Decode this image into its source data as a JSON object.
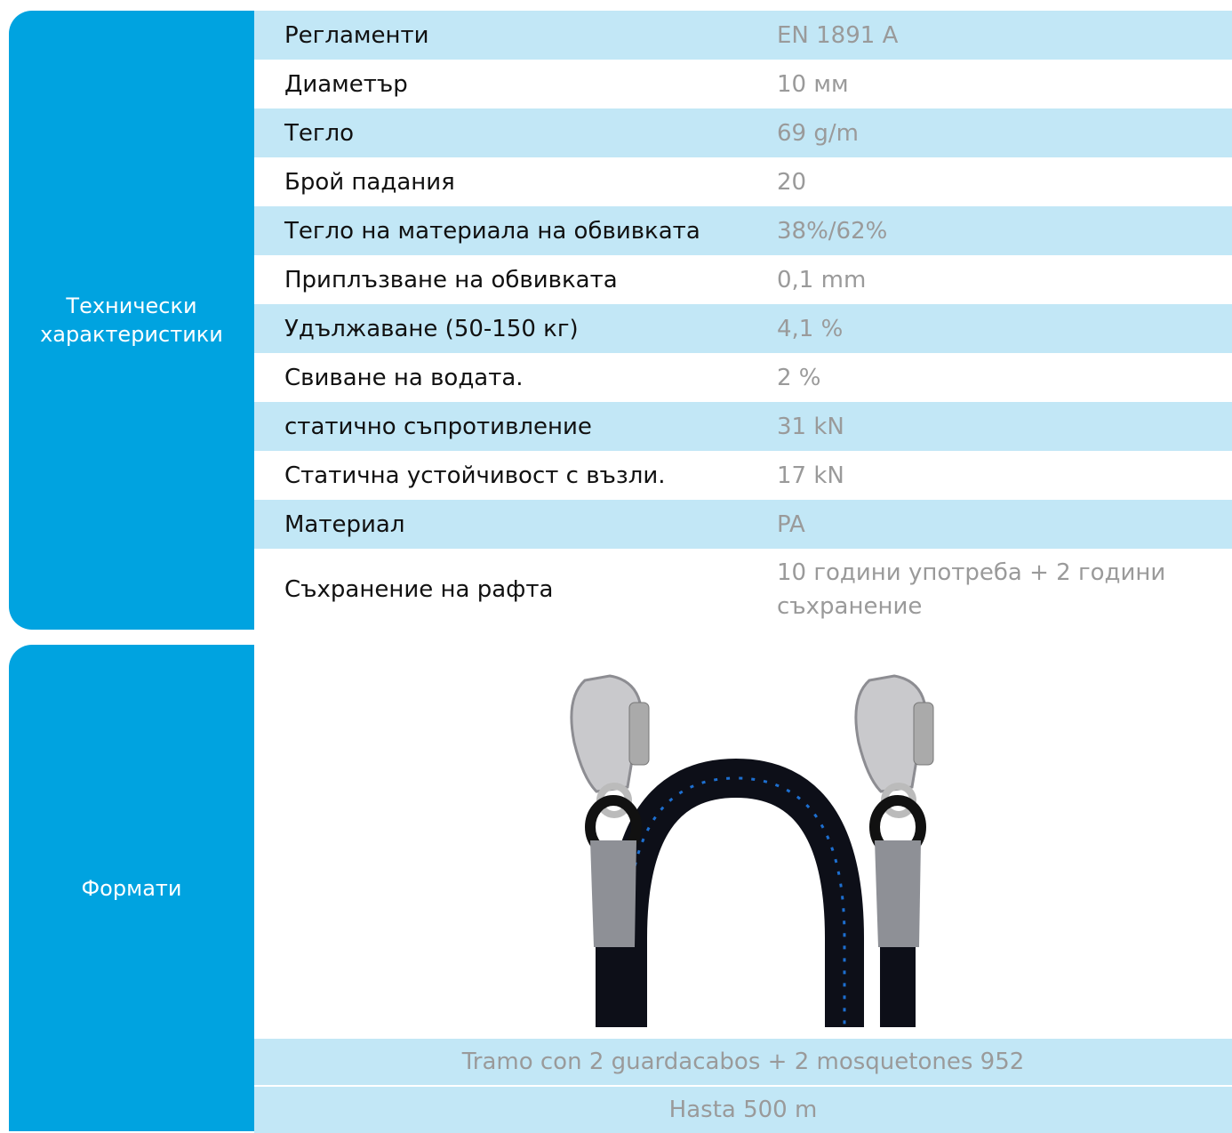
{
  "specs": {
    "label": "Технически характеристики",
    "rows": [
      [
        "Регламенти",
        "EN 1891 A"
      ],
      [
        "Диаметър",
        "10 мм"
      ],
      [
        "Тегло",
        "69 g/m"
      ],
      [
        "Брой падания",
        "20"
      ],
      [
        "Тегло на материала на обвивката",
        "38%/62%"
      ],
      [
        "Приплъзване на обвивката",
        "0,1 mm"
      ],
      [
        "Удължаване (50-150 кг)",
        "4,1 %"
      ],
      [
        "Свиване на водата.",
        "2 %"
      ],
      [
        "статично съпротивление",
        "31 kN"
      ],
      [
        "Статична устойчивост с възли.",
        "17 kN"
      ],
      [
        "Материал",
        "PA"
      ],
      [
        "Съхранение на рафта",
        "10 години употреба + 2 години съхранение"
      ]
    ]
  },
  "formats": {
    "label": "Формати",
    "items": [
      "Tramo con 2 guardacabos + 2 mosquetones 952",
      "Hasta 500 m"
    ]
  }
}
